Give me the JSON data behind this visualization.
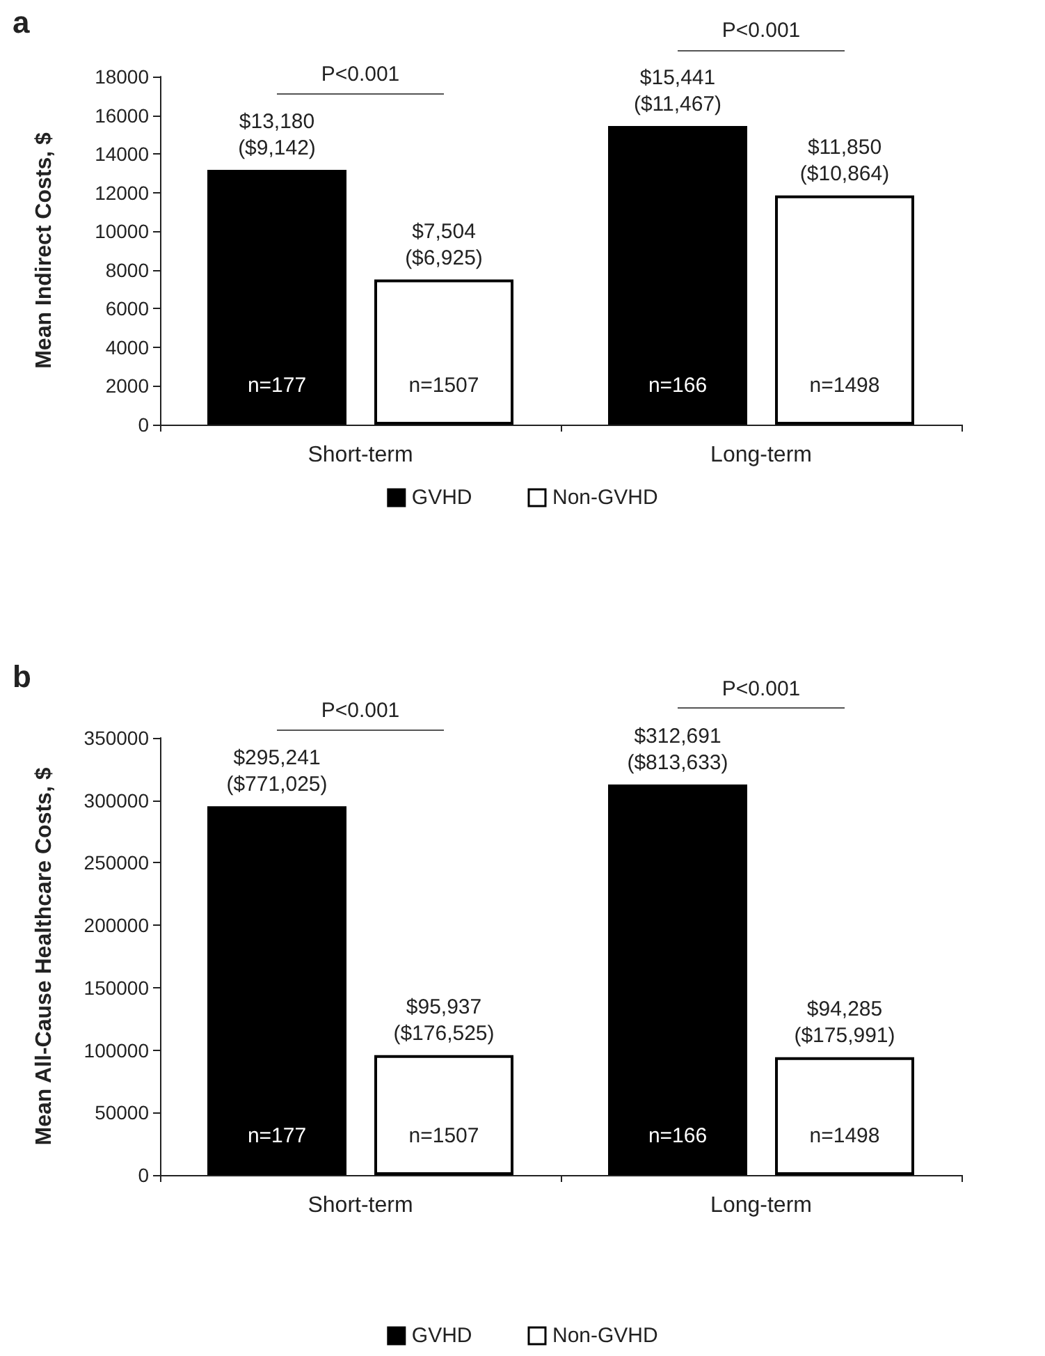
{
  "chart_data": [
    {
      "type": "bar",
      "title": "a",
      "ylabel": "Mean Indirect Costs, $",
      "categories": [
        "Short-term",
        "Long-term"
      ],
      "series": [
        {
          "name": "GVHD",
          "color": "#000000",
          "values": [
            13180,
            15441
          ],
          "value_labels": [
            "$13,180\n($9,142)",
            "$15,441\n($11,467)"
          ]
        },
        {
          "name": "Non-GVHD",
          "color": "#ffffff",
          "values": [
            7504,
            11850
          ],
          "value_labels": [
            "$7,504\n($6,925)",
            "$11,850\n($10,864)"
          ]
        }
      ],
      "ylim": [
        0,
        18000
      ],
      "yticks": [
        0,
        2000,
        4000,
        6000,
        8000,
        10000,
        12000,
        14000,
        16000,
        18000
      ],
      "annotations": [
        "P<0.001",
        "P<0.001",
        "n=177",
        "n=1507",
        "n=166",
        "n=1498"
      ],
      "grid": false,
      "legend": "bottom"
    },
    {
      "type": "bar",
      "title": "b",
      "ylabel": "Mean All-Cause Healthcare Costs, $",
      "categories": [
        "Short-term",
        "Long-term"
      ],
      "series": [
        {
          "name": "GVHD",
          "color": "#000000",
          "values": [
            295241,
            312691
          ],
          "value_labels": [
            "$295,241\n($771,025)",
            "$312,691\n($813,633)"
          ]
        },
        {
          "name": "Non-GVHD",
          "color": "#ffffff",
          "values": [
            95937,
            94285
          ],
          "value_labels": [
            "$95,937\n($176,525)",
            "$94,285\n($175,991)"
          ]
        }
      ],
      "ylim": [
        0,
        350000
      ],
      "yticks": [
        0,
        50000,
        100000,
        150000,
        200000,
        250000,
        300000,
        350000
      ],
      "annotations": [
        "P<0.001",
        "P<0.001",
        "n=177",
        "n=1507",
        "n=166",
        "n=1498"
      ],
      "grid": false,
      "legend": "bottom"
    }
  ]
}
